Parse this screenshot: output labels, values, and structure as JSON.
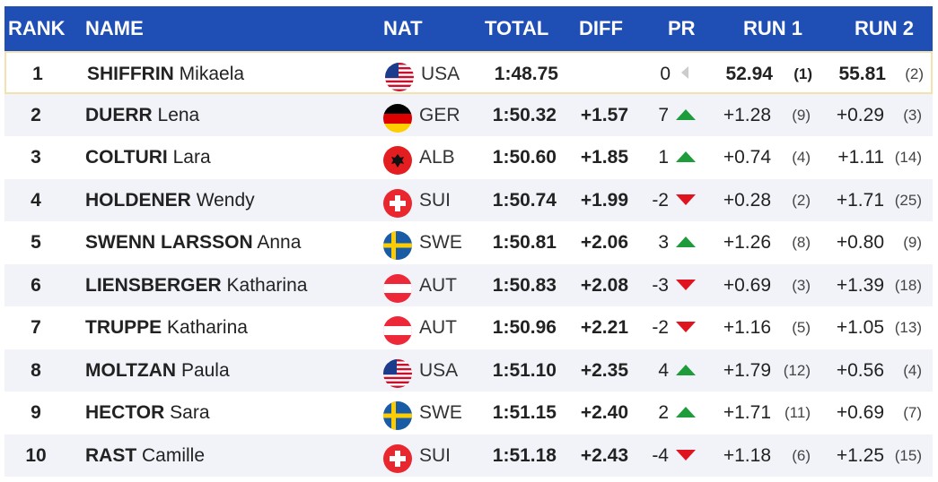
{
  "headers": {
    "rank": "RANK",
    "name": "NAME",
    "nat": "NAT",
    "total": "TOTAL",
    "diff": "DIFF",
    "pr": "PR",
    "run1": "RUN 1",
    "run2": "RUN 2"
  },
  "rows": [
    {
      "rank": "1",
      "last": "SHIFFRIN",
      "first": "Mikaela",
      "flag": "usa-flag-icon",
      "nat": "USA",
      "total": "1:48.75",
      "diff": "",
      "pr": "0",
      "trend": "neutral",
      "r1": "52.94",
      "r1p": "(1)",
      "r2": "55.81",
      "r2p": "(2)"
    },
    {
      "rank": "2",
      "last": "DUERR",
      "first": "Lena",
      "flag": "germany-flag-icon",
      "nat": "GER",
      "total": "1:50.32",
      "diff": "+1.57",
      "pr": "7",
      "trend": "up",
      "r1": "+1.28",
      "r1p": "(9)",
      "r2": "+0.29",
      "r2p": "(3)"
    },
    {
      "rank": "3",
      "last": "COLTURI",
      "first": "Lara",
      "flag": "albania-flag-icon",
      "nat": "ALB",
      "total": "1:50.60",
      "diff": "+1.85",
      "pr": "1",
      "trend": "up",
      "r1": "+0.74",
      "r1p": "(4)",
      "r2": "+1.11",
      "r2p": "(14)"
    },
    {
      "rank": "4",
      "last": "HOLDENER",
      "first": "Wendy",
      "flag": "switzerland-flag-icon",
      "nat": "SUI",
      "total": "1:50.74",
      "diff": "+1.99",
      "pr": "-2",
      "trend": "down",
      "r1": "+0.28",
      "r1p": "(2)",
      "r2": "+1.71",
      "r2p": "(25)"
    },
    {
      "rank": "5",
      "last": "SWENN LARSSON",
      "first": "Anna",
      "flag": "sweden-flag-icon",
      "nat": "SWE",
      "total": "1:50.81",
      "diff": "+2.06",
      "pr": "3",
      "trend": "up",
      "r1": "+1.26",
      "r1p": "(8)",
      "r2": "+0.80",
      "r2p": "(9)"
    },
    {
      "rank": "6",
      "last": "LIENSBERGER",
      "first": "Katharina",
      "flag": "austria-flag-icon",
      "nat": "AUT",
      "total": "1:50.83",
      "diff": "+2.08",
      "pr": "-3",
      "trend": "down",
      "r1": "+0.69",
      "r1p": "(3)",
      "r2": "+1.39",
      "r2p": "(18)"
    },
    {
      "rank": "7",
      "last": "TRUPPE",
      "first": "Katharina",
      "flag": "austria-flag-icon",
      "nat": "AUT",
      "total": "1:50.96",
      "diff": "+2.21",
      "pr": "-2",
      "trend": "down",
      "r1": "+1.16",
      "r1p": "(5)",
      "r2": "+1.05",
      "r2p": "(13)"
    },
    {
      "rank": "8",
      "last": "MOLTZAN",
      "first": "Paula",
      "flag": "usa-flag-icon",
      "nat": "USA",
      "total": "1:51.10",
      "diff": "+2.35",
      "pr": "4",
      "trend": "up",
      "r1": "+1.79",
      "r1p": "(12)",
      "r2": "+0.56",
      "r2p": "(4)"
    },
    {
      "rank": "9",
      "last": "HECTOR",
      "first": "Sara",
      "flag": "sweden-flag-icon",
      "nat": "SWE",
      "total": "1:51.15",
      "diff": "+2.40",
      "pr": "2",
      "trend": "up",
      "r1": "+1.71",
      "r1p": "(11)",
      "r2": "+0.69",
      "r2p": "(7)"
    },
    {
      "rank": "10",
      "last": "RAST",
      "first": "Camille",
      "flag": "switzerland-flag-icon",
      "nat": "SUI",
      "total": "1:51.18",
      "diff": "+2.43",
      "pr": "-4",
      "trend": "down",
      "r1": "+1.18",
      "r1p": "(6)",
      "r2": "+1.25",
      "r2p": "(15)"
    }
  ],
  "colors": {
    "header": "#1f4fb5",
    "up": "#1e9b3a",
    "down": "#e0141e",
    "neutral": "#cccccc"
  }
}
